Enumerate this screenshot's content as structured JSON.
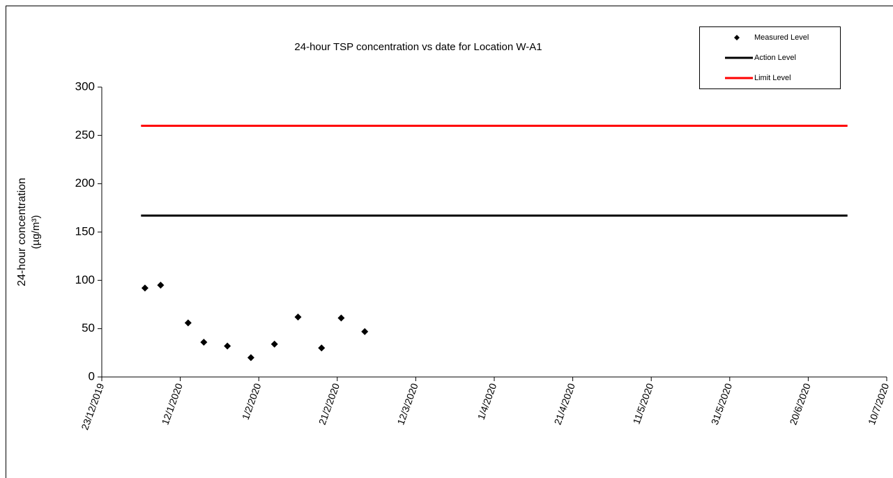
{
  "chart_data": {
    "type": "scatter",
    "title": "24-hour TSP concentration vs date for Location W-A1",
    "y_label": [
      "24-hour concentration",
      "(µg/m³)"
    ],
    "xlim": [
      "2019-12-23",
      "2020-07-10"
    ],
    "xticks": [
      {
        "value": "2019-12-23",
        "label": "23/12/2019"
      },
      {
        "value": "2020-01-12",
        "label": "12/1/2020"
      },
      {
        "value": "2020-02-01",
        "label": "1/2/2020"
      },
      {
        "value": "2020-02-21",
        "label": "21/2/2020"
      },
      {
        "value": "2020-03-12",
        "label": "12/3/2020"
      },
      {
        "value": "2020-04-01",
        "label": "1/4/2020"
      },
      {
        "value": "2020-04-21",
        "label": "21/4/2020"
      },
      {
        "value": "2020-05-11",
        "label": "11/5/2020"
      },
      {
        "value": "2020-05-31",
        "label": "31/5/2020"
      },
      {
        "value": "2020-06-20",
        "label": "20/6/2020"
      },
      {
        "value": "2020-07-10",
        "label": "10/7/2020"
      }
    ],
    "ylim": [
      0,
      300
    ],
    "yticks": [
      0,
      50,
      100,
      150,
      200,
      250,
      300
    ],
    "legend": "top-right",
    "series": [
      {
        "name": "Measured Level",
        "color": "#000000",
        "style": "marker",
        "x": [
          "2020-01-03",
          "2020-01-07",
          "2020-01-14",
          "2020-01-18",
          "2020-01-24",
          "2020-01-30",
          "2020-02-05",
          "2020-02-11",
          "2020-02-17",
          "2020-02-22",
          "2020-02-28"
        ],
        "values": [
          92,
          95,
          56,
          36,
          32,
          20,
          34,
          62,
          30,
          61,
          47
        ]
      },
      {
        "name": "Action Level",
        "color": "#000000",
        "style": "line",
        "x": [
          "2020-01-02",
          "2020-06-30"
        ],
        "values": [
          167,
          167
        ]
      },
      {
        "name": "Limit Level",
        "color": "#ff0000",
        "style": "line",
        "x": [
          "2020-01-02",
          "2020-06-30"
        ],
        "values": [
          260,
          260
        ]
      }
    ]
  }
}
